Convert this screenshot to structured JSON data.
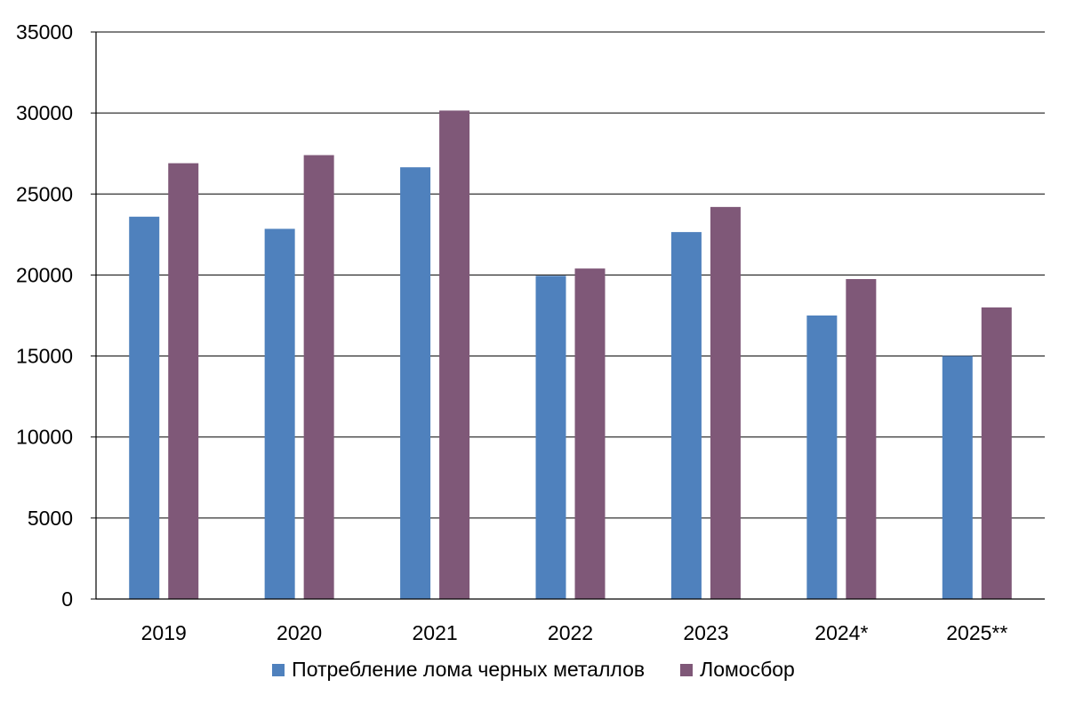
{
  "chart_data": {
    "type": "bar",
    "categories": [
      "2019",
      "2020",
      "2021",
      "2022",
      "2023",
      "2024*",
      "2025**"
    ],
    "series": [
      {
        "name": "Потребление лома черных металлов",
        "color": "#4F81BD",
        "values": [
          23600,
          22850,
          26650,
          19950,
          22650,
          17500,
          15000
        ]
      },
      {
        "name": "Ломосбор",
        "color": "#7F5878",
        "values": [
          26900,
          27400,
          30150,
          20400,
          24200,
          19750,
          18000
        ]
      }
    ],
    "ylim": [
      0,
      35000
    ],
    "yticks": [
      "0",
      "5000",
      "10000",
      "15000",
      "20000",
      "25000",
      "30000",
      "35000"
    ],
    "grid": true,
    "legend_position": "bottom"
  }
}
